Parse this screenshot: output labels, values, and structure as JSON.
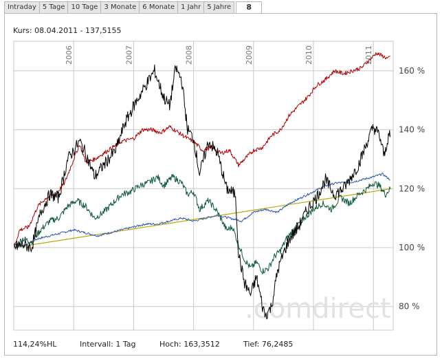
{
  "tabs": [
    {
      "label": "Intraday"
    },
    {
      "label": "5 Tage"
    },
    {
      "label": "10 Tage"
    },
    {
      "label": "3 Monate"
    },
    {
      "label": "6 Monate"
    },
    {
      "label": "1 Jahr"
    },
    {
      "label": "5 Jahre"
    },
    {
      "label": "8"
    }
  ],
  "header": {
    "kurs": "Kurs: 08.04.2011 - 137,5155"
  },
  "footer": {
    "hl": "114,24%HL",
    "intervall": "Intervall: 1 Tag",
    "hoch": "Hoch: 163,3512",
    "tief": "Tief: 76,2485"
  },
  "watermark": {
    "text": ".comdirect"
  },
  "colors": {
    "black_series": "#000000",
    "red_series": "#b00000",
    "blue_series": "#2b55a8",
    "green_series": "#0f5a3a",
    "trend_line": "#b8a800",
    "grid": "#c8c8c8"
  },
  "chart_data": {
    "type": "line",
    "x_unit": "year",
    "xlim": [
      2005.0,
      2011.33
    ],
    "ylim": [
      72,
      170
    ],
    "y_ticks": [
      {
        "value": 80,
        "label": "80 %"
      },
      {
        "value": 100,
        "label": "100 %"
      },
      {
        "value": 120,
        "label": "120 %"
      },
      {
        "value": 140,
        "label": "140 %"
      },
      {
        "value": 160,
        "label": "160 %"
      }
    ],
    "x_ticks": [
      {
        "value": 2006,
        "label": "2006"
      },
      {
        "value": 2007,
        "label": "2007"
      },
      {
        "value": 2008,
        "label": "2008"
      },
      {
        "value": 2009,
        "label": "2009"
      },
      {
        "value": 2010,
        "label": "2010"
      },
      {
        "value": 2011,
        "label": "2011"
      }
    ],
    "grid": true,
    "series": [
      {
        "color_key": "black_series",
        "points": [
          [
            2005.0,
            100
          ],
          [
            2005.15,
            101
          ],
          [
            2005.3,
            100
          ],
          [
            2005.45,
            112
          ],
          [
            2005.6,
            118
          ],
          [
            2005.75,
            117
          ],
          [
            2005.9,
            130
          ],
          [
            2006.1,
            136
          ],
          [
            2006.2,
            132
          ],
          [
            2006.35,
            124
          ],
          [
            2006.5,
            128
          ],
          [
            2006.7,
            133
          ],
          [
            2006.85,
            142
          ],
          [
            2007.0,
            148
          ],
          [
            2007.2,
            155
          ],
          [
            2007.35,
            160
          ],
          [
            2007.5,
            151
          ],
          [
            2007.6,
            148
          ],
          [
            2007.7,
            161
          ],
          [
            2007.8,
            157
          ],
          [
            2007.9,
            140
          ],
          [
            2008.0,
            137
          ],
          [
            2008.1,
            125
          ],
          [
            2008.25,
            136
          ],
          [
            2008.4,
            132
          ],
          [
            2008.55,
            120
          ],
          [
            2008.7,
            118
          ],
          [
            2008.75,
            98
          ],
          [
            2008.85,
            88
          ],
          [
            2008.95,
            84
          ],
          [
            2009.05,
            90
          ],
          [
            2009.15,
            80
          ],
          [
            2009.2,
            77
          ],
          [
            2009.3,
            80
          ],
          [
            2009.4,
            92
          ],
          [
            2009.5,
            98
          ],
          [
            2009.6,
            103
          ],
          [
            2009.75,
            107
          ],
          [
            2009.9,
            113
          ],
          [
            2010.05,
            117
          ],
          [
            2010.2,
            123
          ],
          [
            2010.35,
            118
          ],
          [
            2010.5,
            120
          ],
          [
            2010.6,
            123
          ],
          [
            2010.75,
            128
          ],
          [
            2010.9,
            136
          ],
          [
            2011.0,
            141
          ],
          [
            2011.1,
            138
          ],
          [
            2011.18,
            131
          ],
          [
            2011.25,
            138
          ],
          [
            2011.28,
            137.5
          ]
        ]
      },
      {
        "color_key": "red_series",
        "points": [
          [
            2005.0,
            100
          ],
          [
            2005.1,
            106
          ],
          [
            2005.25,
            107
          ],
          [
            2005.4,
            114
          ],
          [
            2005.55,
            117
          ],
          [
            2005.7,
            118
          ],
          [
            2005.85,
            122
          ],
          [
            2006.0,
            130
          ],
          [
            2006.1,
            135
          ],
          [
            2006.2,
            129
          ],
          [
            2006.35,
            130
          ],
          [
            2006.5,
            132
          ],
          [
            2006.65,
            134
          ],
          [
            2006.8,
            136
          ],
          [
            2007.0,
            137
          ],
          [
            2007.15,
            140
          ],
          [
            2007.3,
            140
          ],
          [
            2007.45,
            139
          ],
          [
            2007.6,
            141
          ],
          [
            2007.75,
            139
          ],
          [
            2007.9,
            137
          ],
          [
            2008.0,
            136
          ],
          [
            2008.15,
            133
          ],
          [
            2008.3,
            134
          ],
          [
            2008.45,
            132
          ],
          [
            2008.6,
            133
          ],
          [
            2008.75,
            128
          ],
          [
            2008.9,
            131
          ],
          [
            2009.0,
            133
          ],
          [
            2009.15,
            134
          ],
          [
            2009.3,
            138
          ],
          [
            2009.45,
            140
          ],
          [
            2009.6,
            145
          ],
          [
            2009.75,
            148
          ],
          [
            2009.9,
            151
          ],
          [
            2010.05,
            155
          ],
          [
            2010.2,
            157
          ],
          [
            2010.35,
            160
          ],
          [
            2010.5,
            159
          ],
          [
            2010.65,
            160
          ],
          [
            2010.8,
            161
          ],
          [
            2010.95,
            164
          ],
          [
            2011.05,
            166
          ],
          [
            2011.15,
            165
          ],
          [
            2011.25,
            164
          ],
          [
            2011.28,
            165
          ]
        ]
      },
      {
        "color_key": "green_series",
        "points": [
          [
            2005.0,
            100
          ],
          [
            2005.15,
            103
          ],
          [
            2005.3,
            102
          ],
          [
            2005.45,
            106
          ],
          [
            2005.6,
            109
          ],
          [
            2005.75,
            110
          ],
          [
            2005.9,
            114
          ],
          [
            2006.05,
            116
          ],
          [
            2006.2,
            114
          ],
          [
            2006.35,
            110
          ],
          [
            2006.5,
            112
          ],
          [
            2006.65,
            115
          ],
          [
            2006.8,
            118
          ],
          [
            2006.95,
            119
          ],
          [
            2007.1,
            121
          ],
          [
            2007.25,
            122
          ],
          [
            2007.4,
            124
          ],
          [
            2007.5,
            121
          ],
          [
            2007.65,
            124
          ],
          [
            2007.8,
            122
          ],
          [
            2007.9,
            118
          ],
          [
            2008.0,
            119
          ],
          [
            2008.1,
            113
          ],
          [
            2008.25,
            116
          ],
          [
            2008.4,
            112
          ],
          [
            2008.55,
            106
          ],
          [
            2008.65,
            107
          ],
          [
            2008.75,
            101
          ],
          [
            2008.85,
            96
          ],
          [
            2008.95,
            93
          ],
          [
            2009.05,
            95
          ],
          [
            2009.15,
            92
          ],
          [
            2009.25,
            93
          ],
          [
            2009.35,
            97
          ],
          [
            2009.45,
            99
          ],
          [
            2009.55,
            103
          ],
          [
            2009.7,
            107
          ],
          [
            2009.85,
            110
          ],
          [
            2010.0,
            113
          ],
          [
            2010.15,
            115
          ],
          [
            2010.3,
            113
          ],
          [
            2010.45,
            117
          ],
          [
            2010.6,
            115
          ],
          [
            2010.75,
            118
          ],
          [
            2010.9,
            120
          ],
          [
            2011.0,
            122
          ],
          [
            2011.1,
            121
          ],
          [
            2011.2,
            118
          ],
          [
            2011.28,
            120
          ]
        ]
      },
      {
        "color_key": "blue_series",
        "points": [
          [
            2005.0,
            100
          ],
          [
            2005.2,
            101
          ],
          [
            2005.4,
            103
          ],
          [
            2005.6,
            104
          ],
          [
            2005.8,
            105
          ],
          [
            2006.0,
            106
          ],
          [
            2006.2,
            105
          ],
          [
            2006.4,
            104
          ],
          [
            2006.6,
            105
          ],
          [
            2006.8,
            106
          ],
          [
            2007.0,
            107
          ],
          [
            2007.2,
            108
          ],
          [
            2007.4,
            108
          ],
          [
            2007.6,
            109
          ],
          [
            2007.8,
            110
          ],
          [
            2008.0,
            109
          ],
          [
            2008.2,
            110
          ],
          [
            2008.4,
            111
          ],
          [
            2008.6,
            110
          ],
          [
            2008.8,
            109
          ],
          [
            2009.0,
            112
          ],
          [
            2009.2,
            113
          ],
          [
            2009.4,
            112
          ],
          [
            2009.6,
            115
          ],
          [
            2009.8,
            117
          ],
          [
            2010.0,
            119
          ],
          [
            2010.2,
            121
          ],
          [
            2010.4,
            122
          ],
          [
            2010.6,
            122
          ],
          [
            2010.8,
            123
          ],
          [
            2011.0,
            124
          ],
          [
            2011.15,
            125
          ],
          [
            2011.28,
            123
          ]
        ]
      },
      {
        "color_key": "trend_line",
        "points": [
          [
            2005.0,
            100
          ],
          [
            2011.3,
            120
          ]
        ]
      }
    ]
  }
}
